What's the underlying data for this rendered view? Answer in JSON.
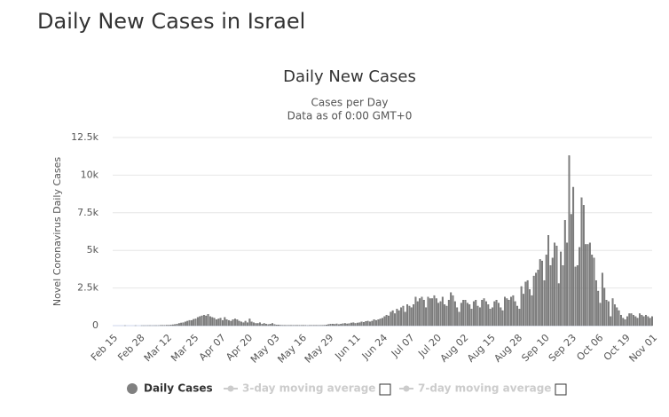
{
  "page_title": "Daily New Cases in Israel",
  "chart_data": {
    "type": "bar",
    "title": "Daily New Cases",
    "subtitle": "Cases per Day",
    "note": "Data as of 0:00 GMT+0",
    "y_label": "Novel Coronavirus Daily Cases",
    "ylim": [
      0,
      12500
    ],
    "yticks": [
      0,
      {
        "value": 2500,
        "label": "2.5k"
      },
      {
        "value": 5000,
        "label": "5k"
      },
      {
        "value": 7500,
        "label": "7.5k"
      },
      {
        "value": 10000,
        "label": "10k"
      },
      {
        "value": 12500,
        "label": "12.5k"
      }
    ],
    "grid": true,
    "categories": [
      "Feb 15",
      null,
      null,
      null,
      null,
      null,
      null,
      null,
      null,
      null,
      null,
      null,
      null,
      "Feb 28",
      null,
      null,
      null,
      null,
      null,
      null,
      null,
      null,
      null,
      null,
      null,
      null,
      "Mar 12",
      null,
      null,
      null,
      null,
      null,
      null,
      null,
      null,
      null,
      null,
      null,
      null,
      "Mar 25",
      null,
      null,
      null,
      null,
      null,
      null,
      null,
      null,
      null,
      null,
      null,
      null,
      "Apr 07",
      null,
      null,
      null,
      null,
      null,
      null,
      null,
      null,
      null,
      null,
      null,
      null,
      "Apr 20",
      null,
      null,
      null,
      null,
      null,
      null,
      null,
      null,
      null,
      null,
      null,
      null,
      "May 03",
      null,
      null,
      null,
      null,
      null,
      null,
      null,
      null,
      null,
      null,
      null,
      null,
      "May 16",
      null,
      null,
      null,
      null,
      null,
      null,
      null,
      null,
      null,
      null,
      null,
      null,
      "May 29",
      null,
      null,
      null,
      null,
      null,
      null,
      null,
      null,
      null,
      null,
      null,
      null,
      "Jun 11",
      null,
      null,
      null,
      null,
      null,
      null,
      null,
      null,
      null,
      null,
      null,
      null,
      "Jun 24",
      null,
      null,
      null,
      null,
      null,
      null,
      null,
      null,
      null,
      null,
      null,
      null,
      "Jul 07",
      null,
      null,
      null,
      null,
      null,
      null,
      null,
      null,
      null,
      null,
      null,
      null,
      "Jul 20",
      null,
      null,
      null,
      null,
      null,
      null,
      null,
      null,
      null,
      null,
      null,
      null,
      "Aug 02",
      null,
      null,
      null,
      null,
      null,
      null,
      null,
      null,
      null,
      null,
      null,
      null,
      "Aug 15",
      null,
      null,
      null,
      null,
      null,
      null,
      null,
      null,
      null,
      null,
      null,
      null,
      "Aug 28",
      null,
      null,
      null,
      null,
      null,
      null,
      null,
      null,
      null,
      null,
      null,
      null,
      "Sep 10",
      null,
      null,
      null,
      null,
      null,
      null,
      null,
      null,
      null,
      null,
      null,
      null,
      "Sep 23",
      null,
      null,
      null,
      null,
      null,
      null,
      null,
      null,
      null,
      null,
      null,
      null,
      "Oct 06",
      null,
      null,
      null,
      null,
      null,
      null,
      null,
      null,
      null,
      null,
      null,
      null,
      "Oct 19",
      null,
      null,
      null,
      null,
      null,
      null,
      null,
      null,
      null,
      null,
      null,
      null,
      "Nov 01"
    ],
    "series": [
      {
        "name": "Daily Cases",
        "color": "#808080",
        "values": [
          0,
          0,
          0,
          0,
          0,
          0,
          1,
          0,
          0,
          0,
          0,
          1,
          0,
          0,
          1,
          1,
          2,
          3,
          4,
          2,
          4,
          4,
          4,
          10,
          15,
          20,
          30,
          25,
          50,
          60,
          80,
          100,
          150,
          180,
          200,
          250,
          300,
          350,
          350,
          420,
          450,
          550,
          600,
          650,
          700,
          650,
          750,
          600,
          550,
          500,
          400,
          450,
          500,
          350,
          550,
          400,
          350,
          300,
          400,
          450,
          400,
          300,
          250,
          200,
          300,
          200,
          450,
          250,
          200,
          150,
          150,
          200,
          100,
          150,
          100,
          80,
          100,
          150,
          80,
          50,
          40,
          30,
          20,
          15,
          20,
          10,
          15,
          20,
          10,
          15,
          10,
          20,
          15,
          10,
          5,
          10,
          20,
          15,
          10,
          10,
          15,
          20,
          30,
          50,
          80,
          100,
          110,
          90,
          120,
          80,
          100,
          130,
          150,
          120,
          140,
          180,
          200,
          150,
          180,
          200,
          250,
          220,
          280,
          300,
          260,
          300,
          400,
          350,
          400,
          450,
          500,
          600,
          700,
          650,
          900,
          1000,
          800,
          1100,
          1000,
          1200,
          1300,
          900,
          1400,
          1300,
          1200,
          1400,
          1900,
          1600,
          1800,
          1900,
          1700,
          1200,
          1900,
          1800,
          1800,
          2000,
          1800,
          1500,
          1600,
          1900,
          1400,
          1300,
          1700,
          2200,
          2000,
          1600,
          1200,
          900,
          1500,
          1700,
          1700,
          1500,
          1400,
          1100,
          1600,
          1700,
          1300,
          1200,
          1700,
          1800,
          1600,
          1400,
          1100,
          1200,
          1600,
          1700,
          1500,
          1200,
          1000,
          1900,
          1800,
          1700,
          1900,
          2000,
          1600,
          1300,
          1100,
          2600,
          2100,
          2900,
          3000,
          2400,
          2000,
          3300,
          3500,
          3700,
          4400,
          4300,
          3000,
          4700,
          6000,
          4000,
          4500,
          5500,
          5300,
          2800,
          4900,
          4000,
          7000,
          5500,
          11300,
          7400,
          9200,
          3900,
          4000,
          5200,
          8500,
          8000,
          5400,
          5400,
          5500,
          4700,
          4500,
          3000,
          2300,
          1500,
          3500,
          2500,
          1700,
          1600,
          600,
          1800,
          1400,
          1200,
          1000,
          700,
          500,
          400,
          600,
          800,
          800,
          700,
          600,
          500,
          800,
          700,
          600,
          700,
          600,
          500,
          600
        ]
      }
    ],
    "toggles": [
      "3-day moving average",
      "7-day moving average"
    ]
  }
}
